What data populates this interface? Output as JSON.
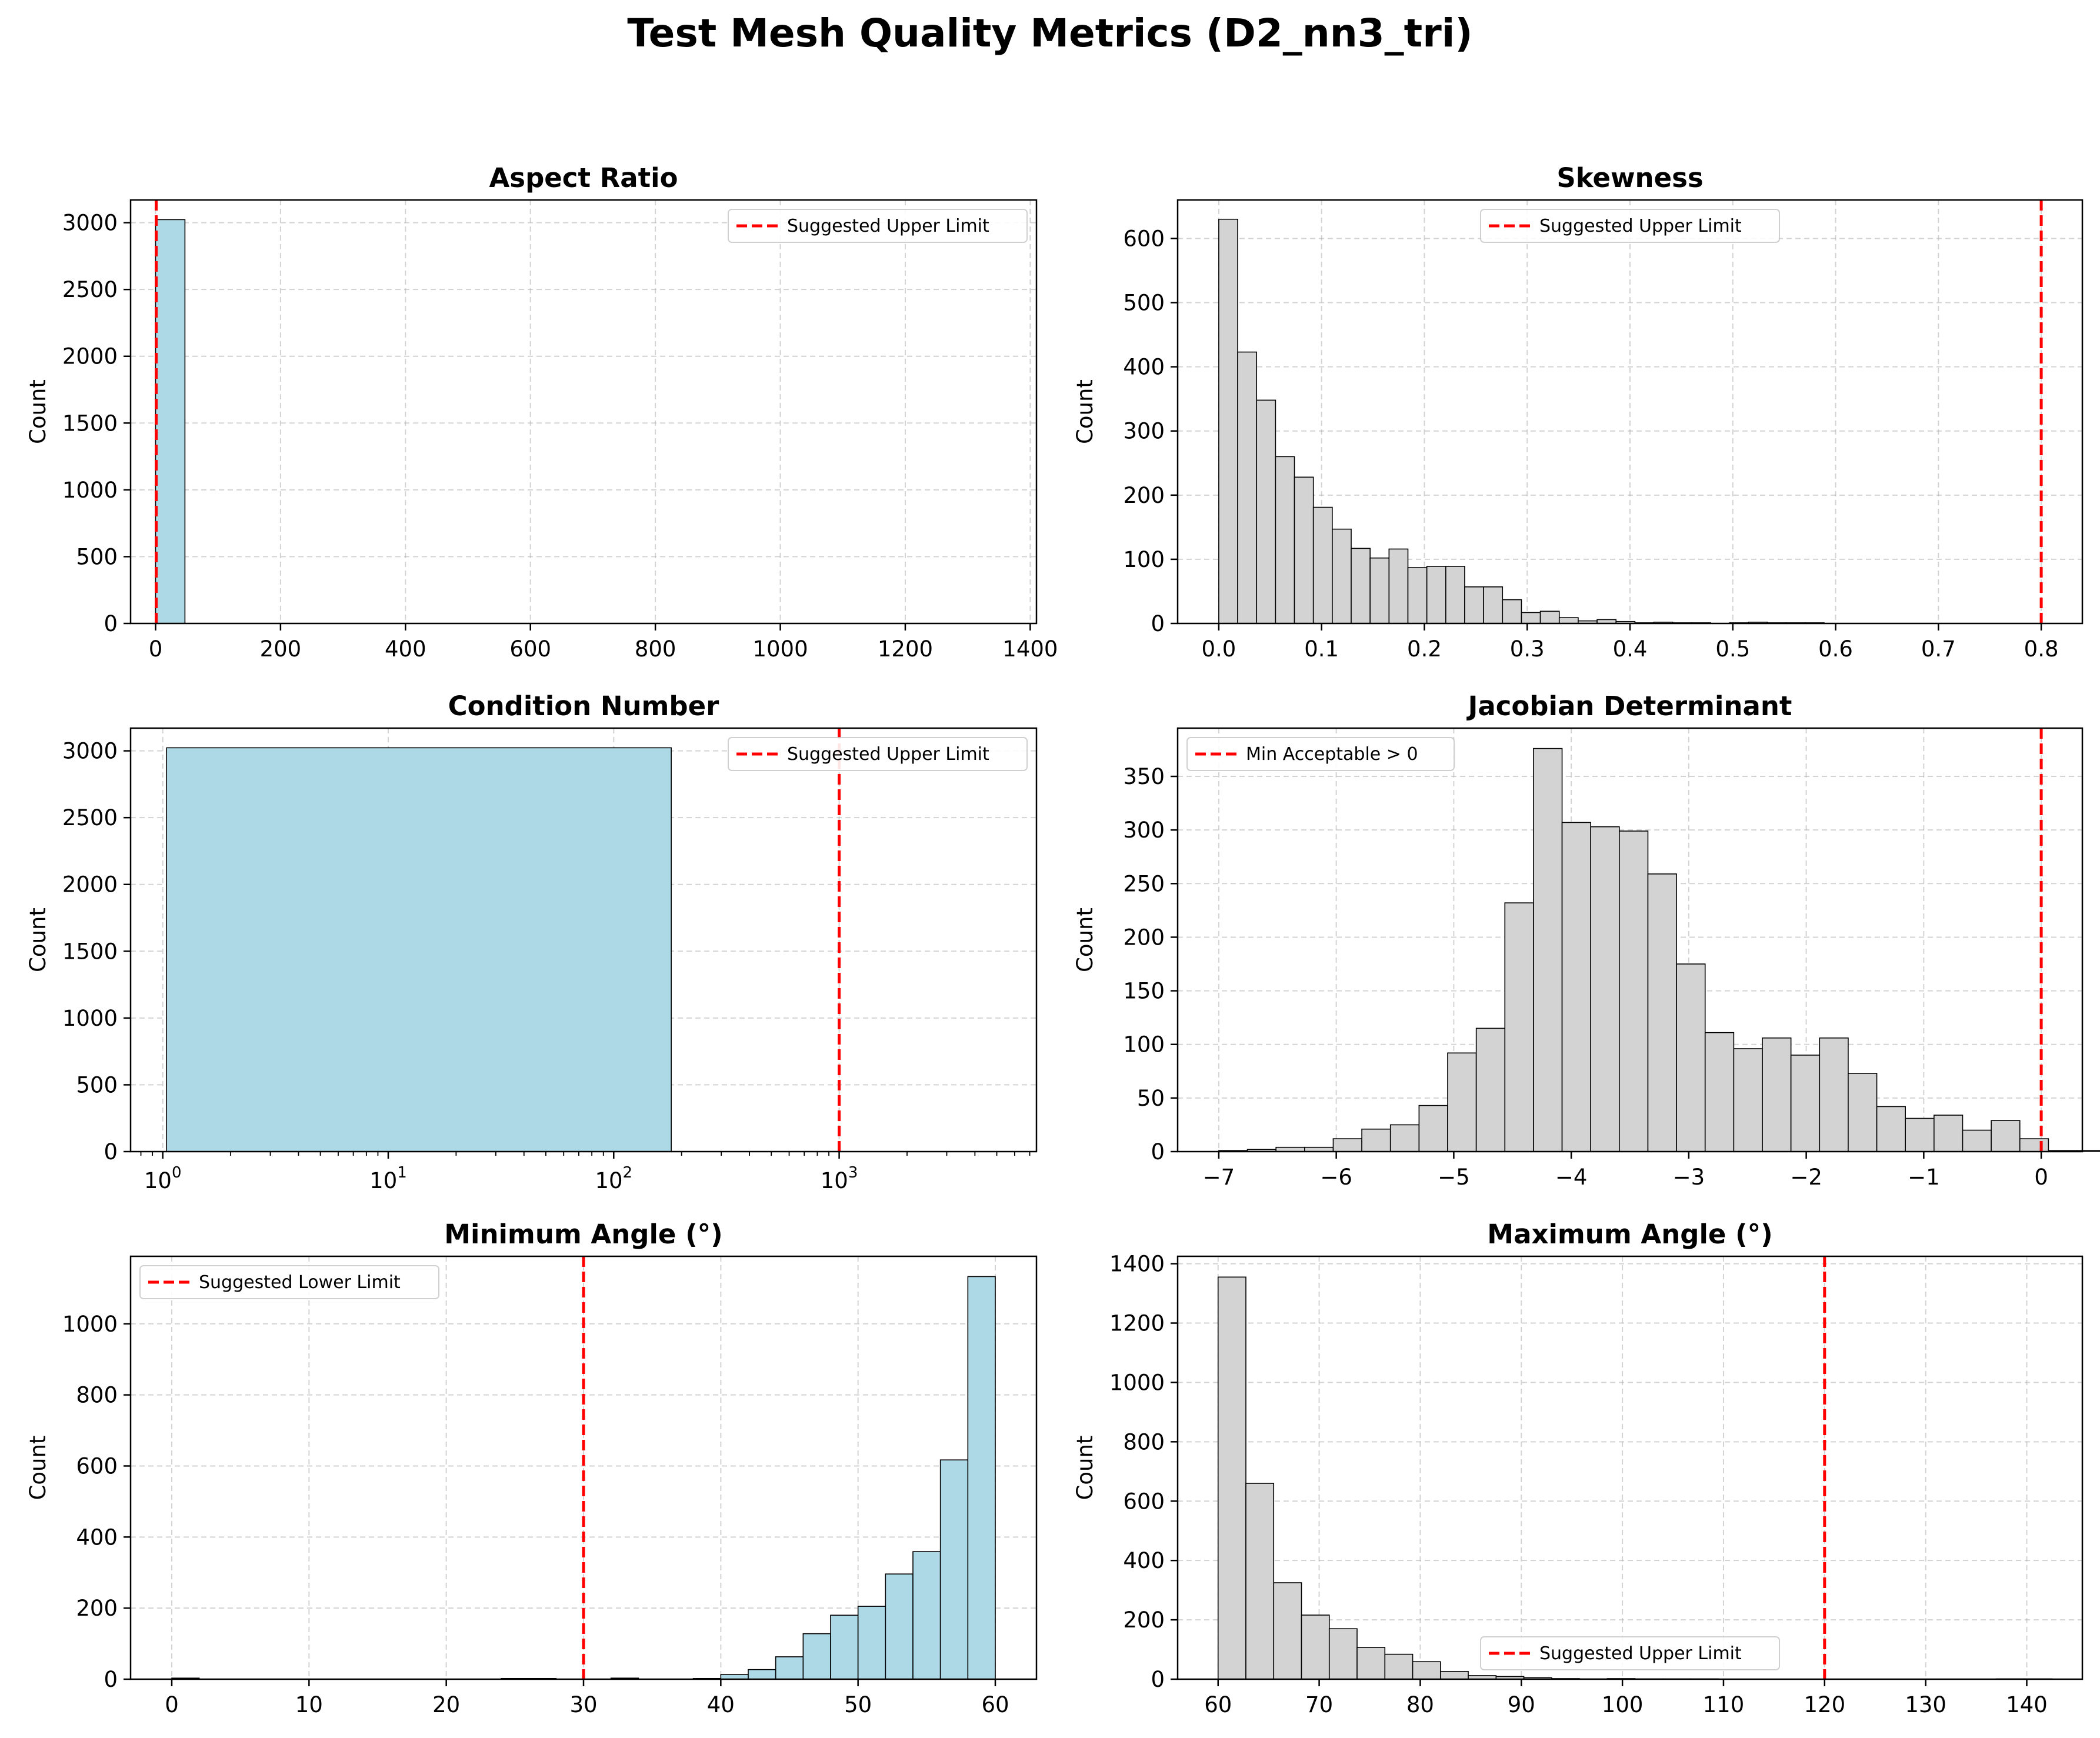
{
  "title": "Test Mesh Quality Metrics (D2_nn3_tri)",
  "colors": {
    "blue_fill": "#add8e6",
    "gray_fill": "#d3d3d3",
    "edge": "#000000",
    "limit_line": "#ff0000"
  },
  "chart_data": [
    {
      "type": "bar",
      "title": "Aspect Ratio",
      "ylabel": "Count",
      "xlim": [
        -40,
        1410
      ],
      "ylim": [
        0,
        3170
      ],
      "x_ticks": [
        0,
        200,
        400,
        600,
        800,
        1000,
        1200,
        1400
      ],
      "y_ticks": [
        0,
        500,
        1000,
        1500,
        2000,
        2500,
        3000
      ],
      "fill": "#add8e6",
      "bins": [
        [
          0,
          47,
          3023
        ]
      ],
      "limit": {
        "x": 1.0,
        "label": "Suggested Upper Limit"
      },
      "legend": "upper right",
      "grid": true
    },
    {
      "type": "bar",
      "title": "Skewness",
      "ylabel": "Count",
      "xlim": [
        -0.04,
        0.84
      ],
      "ylim": [
        0,
        660
      ],
      "x_ticks": [
        0.0,
        0.1,
        0.2,
        0.3,
        0.4,
        0.5,
        0.6,
        0.7,
        0.8
      ],
      "x_tick_labels": [
        "0.0",
        "0.1",
        "0.2",
        "0.3",
        "0.4",
        "0.5",
        "0.6",
        "0.7",
        "0.8"
      ],
      "y_ticks": [
        0,
        100,
        200,
        300,
        400,
        500,
        600
      ],
      "fill": "#d3d3d3",
      "bin_start": 0.0,
      "bin_width": 0.0184,
      "counts": [
        630,
        423,
        348,
        260,
        228,
        181,
        147,
        117,
        102,
        116,
        87,
        89,
        89,
        57,
        57,
        37,
        17,
        19,
        9,
        4,
        6,
        3,
        1,
        2,
        1,
        1,
        0,
        1,
        2,
        1,
        1,
        1,
        0,
        0
      ],
      "limit": {
        "x": 0.8,
        "label": "Suggested Upper Limit"
      },
      "legend": "upper center",
      "grid": true
    },
    {
      "type": "bar",
      "title": "Condition Number",
      "ylabel": "Count",
      "xscale": "log",
      "xlim": [
        0.72,
        7500
      ],
      "ylim": [
        0,
        3170
      ],
      "x_ticks": [
        1,
        10,
        100,
        1000
      ],
      "x_tick_labels": [
        [
          "10",
          "0"
        ],
        [
          "10",
          "1"
        ],
        [
          "10",
          "2"
        ],
        [
          "10",
          "3"
        ]
      ],
      "y_ticks": [
        0,
        500,
        1000,
        1500,
        2000,
        2500,
        3000
      ],
      "fill": "#add8e6",
      "bins": [
        [
          1.04,
          180,
          3023
        ]
      ],
      "limit": {
        "x": 1000,
        "label": "Suggested Upper Limit"
      },
      "legend": "upper right",
      "grid": true
    },
    {
      "type": "bar",
      "title": "Jacobian Determinant",
      "ylabel": "Count",
      "xlim": [
        -7.35,
        0.35
      ],
      "ylim": [
        0,
        395
      ],
      "x_ticks": [
        -7,
        -6,
        -5,
        -4,
        -3,
        -2,
        -1,
        0
      ],
      "x_tick_labels": [
        "−7",
        "−6",
        "−5",
        "−4",
        "−3",
        "−2",
        "−1",
        "0"
      ],
      "y_ticks": [
        0,
        50,
        100,
        150,
        200,
        250,
        300,
        350
      ],
      "fill": "#d3d3d3",
      "bin_start": -7.0,
      "bin_width": 0.2435,
      "counts": [
        1,
        2,
        4,
        4,
        12,
        21,
        25,
        43,
        92,
        115,
        232,
        376,
        307,
        303,
        299,
        259,
        175,
        111,
        96,
        106,
        90,
        106,
        73,
        42,
        31,
        34,
        20,
        29,
        12,
        1,
        1
      ],
      "limit": {
        "x": 0,
        "label": "Min Acceptable > 0"
      },
      "legend": "upper left",
      "grid": true
    },
    {
      "type": "bar",
      "title": "Minimum Angle (°)",
      "ylabel": "Count",
      "xlim": [
        -3.0,
        63.0
      ],
      "ylim": [
        0,
        1190
      ],
      "x_ticks": [
        0,
        10,
        20,
        30,
        40,
        50,
        60
      ],
      "y_ticks": [
        0,
        200,
        400,
        600,
        800,
        1000
      ],
      "fill": "#add8e6",
      "bin_start": 0.0,
      "bin_width": 2.0,
      "counts": [
        3,
        0,
        0,
        0,
        0,
        0,
        0,
        0,
        0,
        0,
        0,
        0,
        2,
        2,
        0,
        0,
        3,
        0,
        0,
        2,
        13,
        27,
        63,
        128,
        180,
        205,
        296,
        359,
        617,
        1133
      ],
      "limit": {
        "x": 30,
        "label": "Suggested Lower Limit"
      },
      "legend": "upper left",
      "grid": true
    },
    {
      "type": "bar",
      "title": "Maximum Angle (°)",
      "ylabel": "Count",
      "xlim": [
        56.0,
        145.5
      ],
      "ylim": [
        0,
        1425
      ],
      "x_ticks": [
        60,
        70,
        80,
        90,
        100,
        110,
        120,
        130,
        140
      ],
      "y_ticks": [
        0,
        200,
        400,
        600,
        800,
        1000,
        1200,
        1400
      ],
      "fill": "#d3d3d3",
      "bin_start": 60.0,
      "bin_width": 2.75,
      "counts": [
        1355,
        660,
        325,
        216,
        170,
        107,
        84,
        59,
        26,
        12,
        9,
        5,
        2,
        1,
        2,
        1,
        1,
        1,
        0,
        0,
        0,
        0,
        0,
        0,
        0,
        0,
        0,
        0,
        1,
        1
      ],
      "limit": {
        "x": 120,
        "label": "Suggested Upper Limit"
      },
      "legend": "lower center",
      "grid": true
    }
  ]
}
